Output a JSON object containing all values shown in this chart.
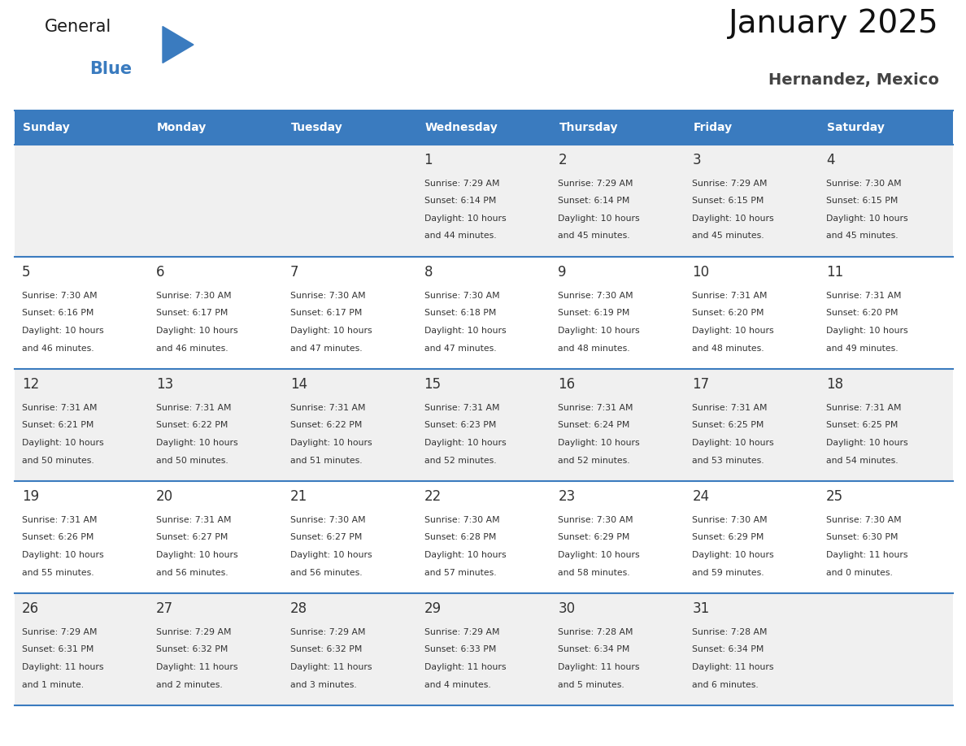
{
  "title": "January 2025",
  "subtitle": "Hernandez, Mexico",
  "days_of_week": [
    "Sunday",
    "Monday",
    "Tuesday",
    "Wednesday",
    "Thursday",
    "Friday",
    "Saturday"
  ],
  "header_bg": "#3a7bbf",
  "header_text": "#ffffff",
  "cell_bg_odd": "#f0f0f0",
  "cell_bg_even": "#ffffff",
  "row_line_color": "#3a7bbf",
  "text_color": "#333333",
  "logo_general_color": "#1a1a1a",
  "logo_blue_color": "#3a7bbf",
  "triangle_color": "#3a7bbf",
  "calendar_data": [
    {
      "day": 1,
      "col": 3,
      "row": 0,
      "sunrise": "7:29 AM",
      "sunset": "6:14 PM",
      "daylight": "10 hours",
      "daylight2": "and 44 minutes."
    },
    {
      "day": 2,
      "col": 4,
      "row": 0,
      "sunrise": "7:29 AM",
      "sunset": "6:14 PM",
      "daylight": "10 hours",
      "daylight2": "and 45 minutes."
    },
    {
      "day": 3,
      "col": 5,
      "row": 0,
      "sunrise": "7:29 AM",
      "sunset": "6:15 PM",
      "daylight": "10 hours",
      "daylight2": "and 45 minutes."
    },
    {
      "day": 4,
      "col": 6,
      "row": 0,
      "sunrise": "7:30 AM",
      "sunset": "6:15 PM",
      "daylight": "10 hours",
      "daylight2": "and 45 minutes."
    },
    {
      "day": 5,
      "col": 0,
      "row": 1,
      "sunrise": "7:30 AM",
      "sunset": "6:16 PM",
      "daylight": "10 hours",
      "daylight2": "and 46 minutes."
    },
    {
      "day": 6,
      "col": 1,
      "row": 1,
      "sunrise": "7:30 AM",
      "sunset": "6:17 PM",
      "daylight": "10 hours",
      "daylight2": "and 46 minutes."
    },
    {
      "day": 7,
      "col": 2,
      "row": 1,
      "sunrise": "7:30 AM",
      "sunset": "6:17 PM",
      "daylight": "10 hours",
      "daylight2": "and 47 minutes."
    },
    {
      "day": 8,
      "col": 3,
      "row": 1,
      "sunrise": "7:30 AM",
      "sunset": "6:18 PM",
      "daylight": "10 hours",
      "daylight2": "and 47 minutes."
    },
    {
      "day": 9,
      "col": 4,
      "row": 1,
      "sunrise": "7:30 AM",
      "sunset": "6:19 PM",
      "daylight": "10 hours",
      "daylight2": "and 48 minutes."
    },
    {
      "day": 10,
      "col": 5,
      "row": 1,
      "sunrise": "7:31 AM",
      "sunset": "6:20 PM",
      "daylight": "10 hours",
      "daylight2": "and 48 minutes."
    },
    {
      "day": 11,
      "col": 6,
      "row": 1,
      "sunrise": "7:31 AM",
      "sunset": "6:20 PM",
      "daylight": "10 hours",
      "daylight2": "and 49 minutes."
    },
    {
      "day": 12,
      "col": 0,
      "row": 2,
      "sunrise": "7:31 AM",
      "sunset": "6:21 PM",
      "daylight": "10 hours",
      "daylight2": "and 50 minutes."
    },
    {
      "day": 13,
      "col": 1,
      "row": 2,
      "sunrise": "7:31 AM",
      "sunset": "6:22 PM",
      "daylight": "10 hours",
      "daylight2": "and 50 minutes."
    },
    {
      "day": 14,
      "col": 2,
      "row": 2,
      "sunrise": "7:31 AM",
      "sunset": "6:22 PM",
      "daylight": "10 hours",
      "daylight2": "and 51 minutes."
    },
    {
      "day": 15,
      "col": 3,
      "row": 2,
      "sunrise": "7:31 AM",
      "sunset": "6:23 PM",
      "daylight": "10 hours",
      "daylight2": "and 52 minutes."
    },
    {
      "day": 16,
      "col": 4,
      "row": 2,
      "sunrise": "7:31 AM",
      "sunset": "6:24 PM",
      "daylight": "10 hours",
      "daylight2": "and 52 minutes."
    },
    {
      "day": 17,
      "col": 5,
      "row": 2,
      "sunrise": "7:31 AM",
      "sunset": "6:25 PM",
      "daylight": "10 hours",
      "daylight2": "and 53 minutes."
    },
    {
      "day": 18,
      "col": 6,
      "row": 2,
      "sunrise": "7:31 AM",
      "sunset": "6:25 PM",
      "daylight": "10 hours",
      "daylight2": "and 54 minutes."
    },
    {
      "day": 19,
      "col": 0,
      "row": 3,
      "sunrise": "7:31 AM",
      "sunset": "6:26 PM",
      "daylight": "10 hours",
      "daylight2": "and 55 minutes."
    },
    {
      "day": 20,
      "col": 1,
      "row": 3,
      "sunrise": "7:31 AM",
      "sunset": "6:27 PM",
      "daylight": "10 hours",
      "daylight2": "and 56 minutes."
    },
    {
      "day": 21,
      "col": 2,
      "row": 3,
      "sunrise": "7:30 AM",
      "sunset": "6:27 PM",
      "daylight": "10 hours",
      "daylight2": "and 56 minutes."
    },
    {
      "day": 22,
      "col": 3,
      "row": 3,
      "sunrise": "7:30 AM",
      "sunset": "6:28 PM",
      "daylight": "10 hours",
      "daylight2": "and 57 minutes."
    },
    {
      "day": 23,
      "col": 4,
      "row": 3,
      "sunrise": "7:30 AM",
      "sunset": "6:29 PM",
      "daylight": "10 hours",
      "daylight2": "and 58 minutes."
    },
    {
      "day": 24,
      "col": 5,
      "row": 3,
      "sunrise": "7:30 AM",
      "sunset": "6:29 PM",
      "daylight": "10 hours",
      "daylight2": "and 59 minutes."
    },
    {
      "day": 25,
      "col": 6,
      "row": 3,
      "sunrise": "7:30 AM",
      "sunset": "6:30 PM",
      "daylight": "11 hours",
      "daylight2": "and 0 minutes."
    },
    {
      "day": 26,
      "col": 0,
      "row": 4,
      "sunrise": "7:29 AM",
      "sunset": "6:31 PM",
      "daylight": "11 hours",
      "daylight2": "and 1 minute."
    },
    {
      "day": 27,
      "col": 1,
      "row": 4,
      "sunrise": "7:29 AM",
      "sunset": "6:32 PM",
      "daylight": "11 hours",
      "daylight2": "and 2 minutes."
    },
    {
      "day": 28,
      "col": 2,
      "row": 4,
      "sunrise": "7:29 AM",
      "sunset": "6:32 PM",
      "daylight": "11 hours",
      "daylight2": "and 3 minutes."
    },
    {
      "day": 29,
      "col": 3,
      "row": 4,
      "sunrise": "7:29 AM",
      "sunset": "6:33 PM",
      "daylight": "11 hours",
      "daylight2": "and 4 minutes."
    },
    {
      "day": 30,
      "col": 4,
      "row": 4,
      "sunrise": "7:28 AM",
      "sunset": "6:34 PM",
      "daylight": "11 hours",
      "daylight2": "and 5 minutes."
    },
    {
      "day": 31,
      "col": 5,
      "row": 4,
      "sunrise": "7:28 AM",
      "sunset": "6:34 PM",
      "daylight": "11 hours",
      "daylight2": "and 6 minutes."
    }
  ]
}
